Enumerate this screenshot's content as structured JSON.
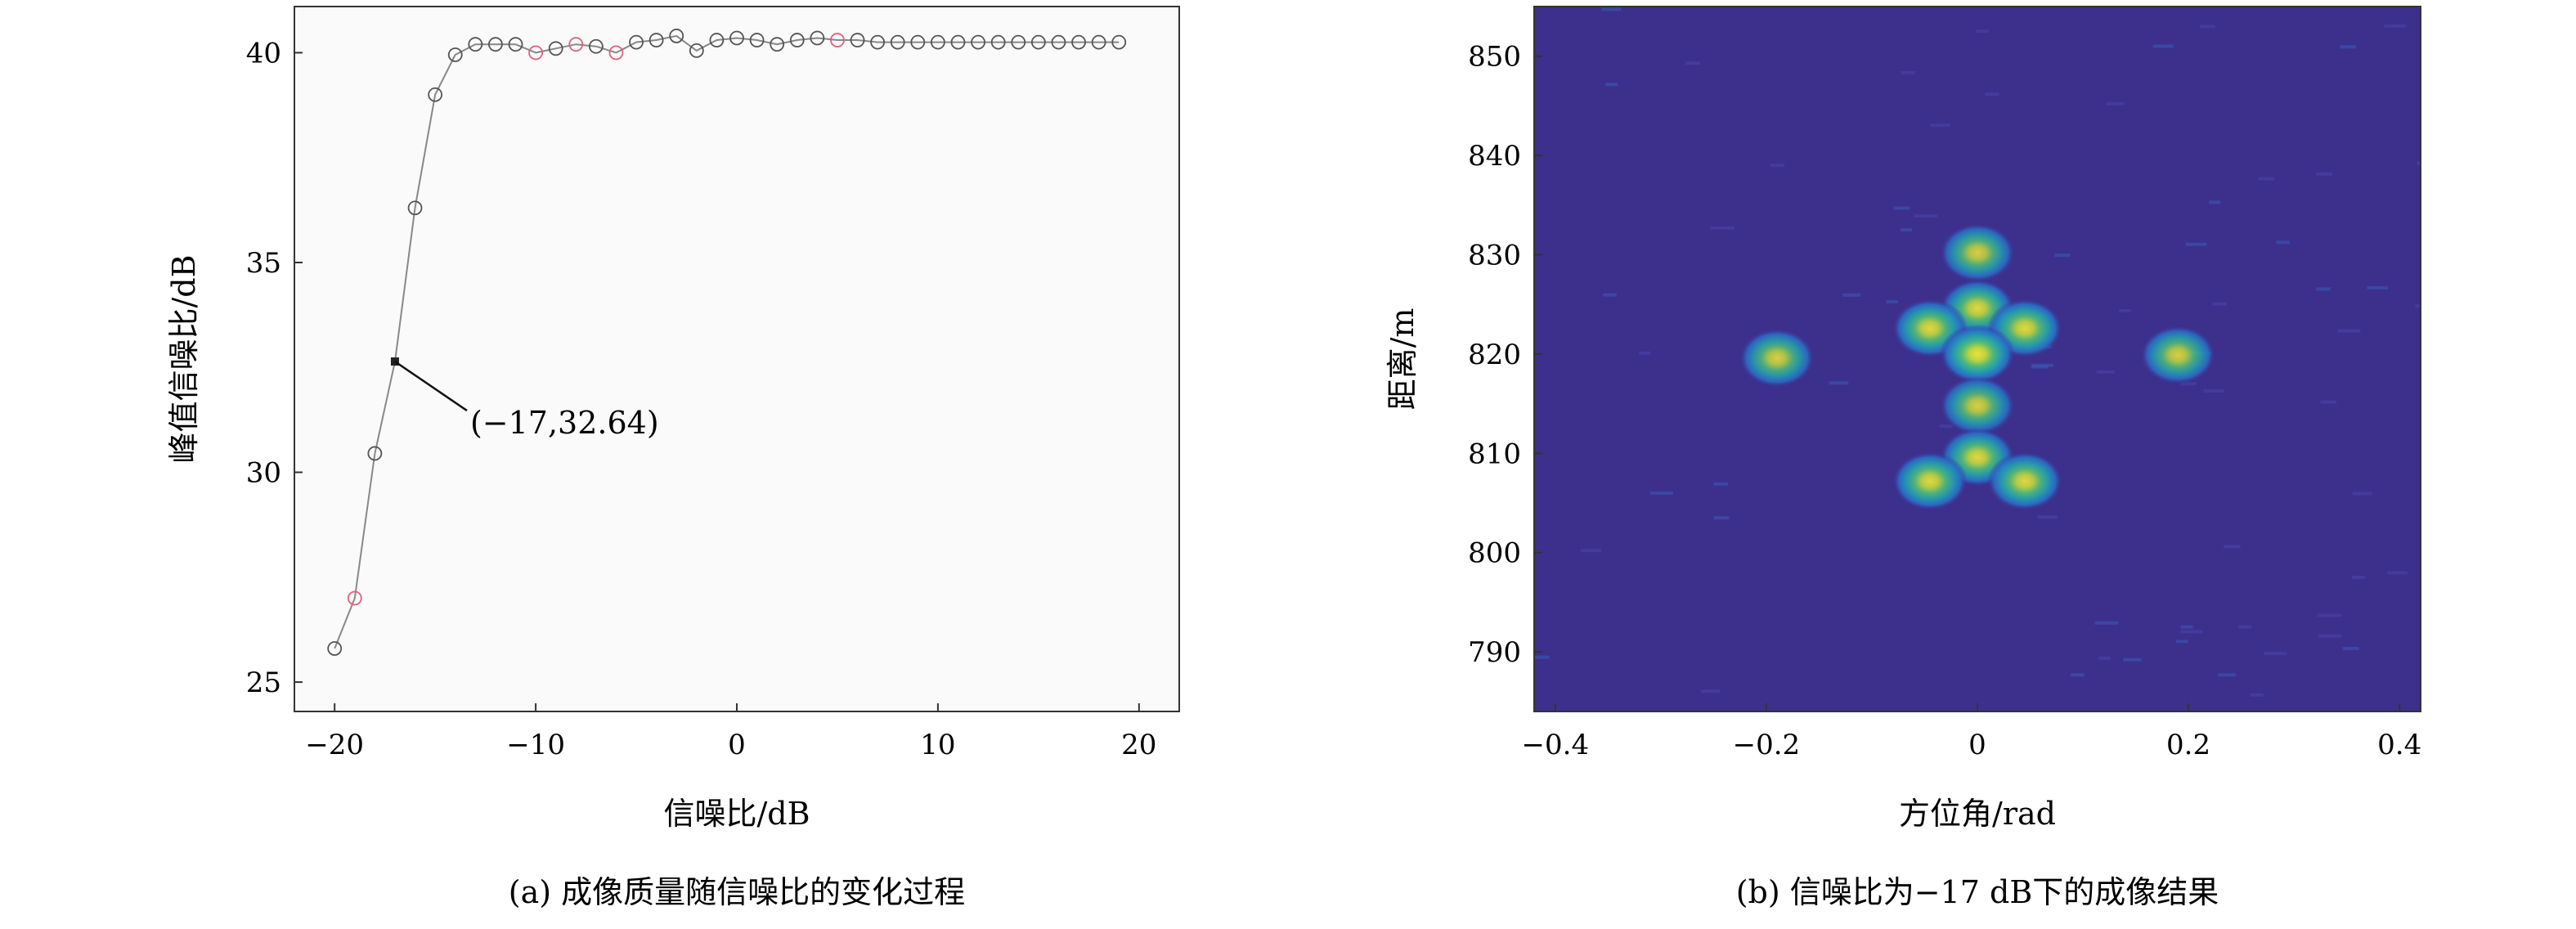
{
  "chart_data": [
    {
      "type": "line",
      "subtitle": "(a) 成像质量随信噪比的变化过程",
      "xlabel": "信噪比/dB",
      "ylabel": "峰值信噪比/dB",
      "xlim": [
        -22,
        22
      ],
      "ylim": [
        24.3,
        41.1
      ],
      "xticks": [
        -20,
        -10,
        0,
        10,
        20
      ],
      "yticks": [
        25,
        30,
        35,
        40
      ],
      "xtick_labels": [
        "−20",
        "−10",
        "0",
        "10",
        "20"
      ],
      "ytick_labels": [
        "25",
        "30",
        "35",
        "40"
      ],
      "grid": false,
      "series": [
        {
          "x": [
            -20,
            -19,
            -18,
            -17,
            -16,
            -15,
            -14,
            -13,
            -12,
            -11,
            -10,
            -9,
            -8,
            -7,
            -6,
            -5,
            -4,
            -3,
            -2,
            -1,
            0,
            1,
            2,
            3,
            4,
            5,
            6,
            7,
            8,
            9,
            10,
            11,
            12,
            13,
            14,
            15,
            16,
            17,
            18,
            19
          ],
          "values": [
            25.8,
            27.0,
            30.45,
            32.64,
            36.3,
            39.0,
            39.95,
            40.2,
            40.2,
            40.2,
            40.0,
            40.1,
            40.2,
            40.15,
            40.0,
            40.25,
            40.3,
            40.4,
            40.05,
            40.3,
            40.35,
            40.3,
            40.2,
            40.3,
            40.35,
            40.3,
            40.3,
            40.25,
            40.25,
            40.25,
            40.25,
            40.25,
            40.25,
            40.25,
            40.25,
            40.25,
            40.25,
            40.25,
            40.25,
            40.25
          ],
          "marker": "circle",
          "color": "#888888",
          "highlighted_x": [
            -19,
            -10,
            -8,
            -6,
            5
          ],
          "highlight_color": "#e0607e",
          "filled_point_x": -17
        }
      ],
      "annotations": [
        {
          "text": "(−17,32.64)",
          "x": -17,
          "y": 32.64
        }
      ]
    },
    {
      "type": "heatmap",
      "subtitle": "(b) 信噪比为−17 dB下的成像结果",
      "xlabel": "方位角/rad",
      "ylabel": "距离/m",
      "xlim": [
        -0.42,
        0.42
      ],
      "ylim": [
        784,
        855
      ],
      "xticks": [
        -0.4,
        -0.2,
        0,
        0.2,
        0.4
      ],
      "yticks": [
        790,
        800,
        810,
        820,
        830,
        840,
        850
      ],
      "xtick_labels": [
        "−0.4",
        "−0.2",
        "0",
        "0.2",
        "0.4"
      ],
      "ytick_labels": [
        "790",
        "800",
        "810",
        "820",
        "830",
        "840",
        "850"
      ],
      "background_color": "#3d2f8c",
      "targets": [
        {
          "x": 0.0,
          "y": 830.2,
          "level": 0.85
        },
        {
          "x": 0.0,
          "y": 824.6,
          "level": 0.9
        },
        {
          "x": -0.045,
          "y": 822.6,
          "level": 0.9
        },
        {
          "x": 0.045,
          "y": 822.6,
          "level": 0.9
        },
        {
          "x": 0.0,
          "y": 820.0,
          "level": 0.95
        },
        {
          "x": -0.19,
          "y": 819.6,
          "level": 0.85
        },
        {
          "x": 0.19,
          "y": 819.9,
          "level": 0.85
        },
        {
          "x": 0.0,
          "y": 814.8,
          "level": 0.85
        },
        {
          "x": 0.0,
          "y": 809.6,
          "level": 0.9
        },
        {
          "x": -0.045,
          "y": 807.2,
          "level": 0.9
        },
        {
          "x": 0.045,
          "y": 807.2,
          "level": 0.9
        }
      ]
    }
  ]
}
